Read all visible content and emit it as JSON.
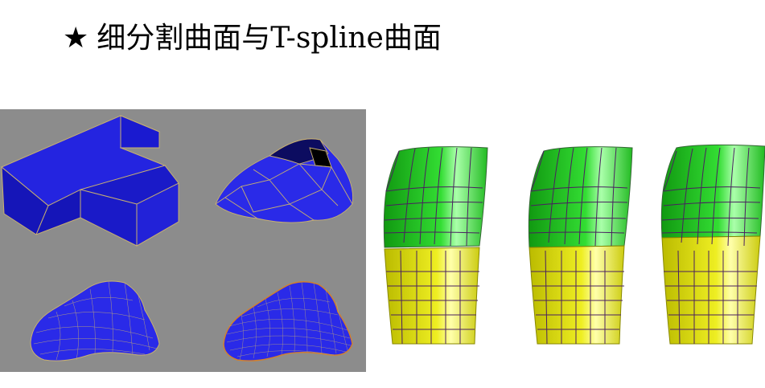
{
  "slide": {
    "title_marker": "★",
    "title_text": "细分割曲面与T-spline曲面"
  },
  "colors": {
    "left_background": "#8c8c8c",
    "mesh_blue": "#1a1adf",
    "upper_patch_green": "#22cc22",
    "lower_patch_yellow": "#e8e819",
    "grid_line": "#5a2a6a"
  }
}
